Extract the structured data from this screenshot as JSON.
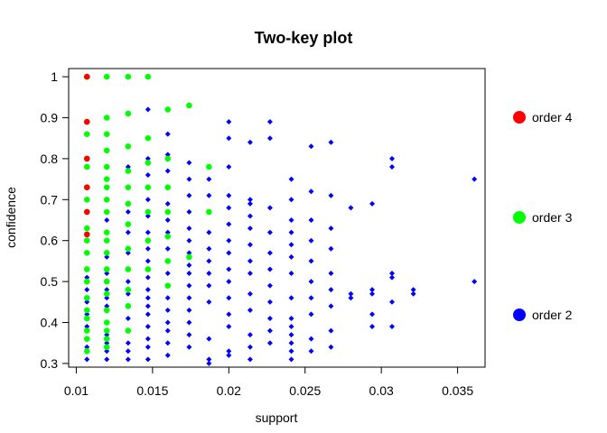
{
  "chart_data": {
    "type": "scatter",
    "title": "Two-key plot",
    "xlabel": "support",
    "ylabel": "confidence",
    "xlim": [
      0.0095,
      0.0368
    ],
    "ylim": [
      0.291,
      1.02
    ],
    "xticks": [
      0.01,
      0.015,
      0.02,
      0.025,
      0.03,
      0.035
    ],
    "xtick_labels": [
      "0.01",
      "0.015",
      "0.02",
      "0.025",
      "0.03",
      "0.035"
    ],
    "yticks": [
      0.3,
      0.4,
      0.5,
      0.6,
      0.7,
      0.8,
      0.9,
      1.0
    ],
    "ytick_labels": [
      "0.3",
      "0.4",
      "0.5",
      "0.6",
      "0.7",
      "0.8",
      "0.9",
      "1"
    ],
    "grid": false,
    "legend_position": "right",
    "legend": [
      {
        "label": "order 4",
        "color": "#ff0000"
      },
      {
        "label": "order 3",
        "color": "#00ff00"
      },
      {
        "label": "order 2",
        "color": "#0000ff"
      }
    ],
    "series": [
      {
        "name": "order 2",
        "color": "#0000ff",
        "points": [
          [
            0.0107,
            0.31
          ],
          [
            0.0107,
            0.34
          ],
          [
            0.0107,
            0.36
          ],
          [
            0.0107,
            0.39
          ],
          [
            0.0107,
            0.42
          ],
          [
            0.0107,
            0.45
          ],
          [
            0.0107,
            0.48
          ],
          [
            0.0107,
            0.51
          ],
          [
            0.012,
            0.31
          ],
          [
            0.012,
            0.33
          ],
          [
            0.012,
            0.35
          ],
          [
            0.012,
            0.37
          ],
          [
            0.012,
            0.4
          ],
          [
            0.012,
            0.44
          ],
          [
            0.012,
            0.46
          ],
          [
            0.012,
            0.48
          ],
          [
            0.012,
            0.52
          ],
          [
            0.012,
            0.56
          ],
          [
            0.012,
            0.6
          ],
          [
            0.012,
            0.65
          ],
          [
            0.012,
            0.7
          ],
          [
            0.0134,
            0.31
          ],
          [
            0.0134,
            0.33
          ],
          [
            0.0134,
            0.35
          ],
          [
            0.0134,
            0.38
          ],
          [
            0.0134,
            0.41
          ],
          [
            0.0134,
            0.44
          ],
          [
            0.0134,
            0.47
          ],
          [
            0.0134,
            0.5
          ],
          [
            0.0134,
            0.53
          ],
          [
            0.0134,
            0.57
          ],
          [
            0.0134,
            0.62
          ],
          [
            0.0134,
            0.67
          ],
          [
            0.0134,
            0.73
          ],
          [
            0.0134,
            0.78
          ],
          [
            0.0147,
            0.31
          ],
          [
            0.0147,
            0.34
          ],
          [
            0.0147,
            0.36
          ],
          [
            0.0147,
            0.39
          ],
          [
            0.0147,
            0.42
          ],
          [
            0.0147,
            0.44
          ],
          [
            0.0147,
            0.46
          ],
          [
            0.0147,
            0.48
          ],
          [
            0.0147,
            0.51
          ],
          [
            0.0147,
            0.55
          ],
          [
            0.0147,
            0.58
          ],
          [
            0.0147,
            0.62
          ],
          [
            0.0147,
            0.66
          ],
          [
            0.0147,
            0.7
          ],
          [
            0.0147,
            0.76
          ],
          [
            0.0147,
            0.8
          ],
          [
            0.0147,
            0.92
          ],
          [
            0.016,
            0.32
          ],
          [
            0.016,
            0.35
          ],
          [
            0.016,
            0.38
          ],
          [
            0.016,
            0.4
          ],
          [
            0.016,
            0.43
          ],
          [
            0.016,
            0.46
          ],
          [
            0.016,
            0.49
          ],
          [
            0.016,
            0.52
          ],
          [
            0.016,
            0.55
          ],
          [
            0.016,
            0.58
          ],
          [
            0.016,
            0.62
          ],
          [
            0.016,
            0.65
          ],
          [
            0.016,
            0.69
          ],
          [
            0.016,
            0.73
          ],
          [
            0.016,
            0.77
          ],
          [
            0.016,
            0.81
          ],
          [
            0.016,
            0.86
          ],
          [
            0.0174,
            0.34
          ],
          [
            0.0174,
            0.37
          ],
          [
            0.0174,
            0.4
          ],
          [
            0.0174,
            0.43
          ],
          [
            0.0174,
            0.46
          ],
          [
            0.0174,
            0.49
          ],
          [
            0.0174,
            0.52
          ],
          [
            0.0174,
            0.54
          ],
          [
            0.0174,
            0.57
          ],
          [
            0.0174,
            0.6
          ],
          [
            0.0174,
            0.63
          ],
          [
            0.0174,
            0.67
          ],
          [
            0.0174,
            0.71
          ],
          [
            0.0174,
            0.75
          ],
          [
            0.0174,
            0.79
          ],
          [
            0.0174,
            0.93
          ],
          [
            0.0187,
            0.3
          ],
          [
            0.0187,
            0.31
          ],
          [
            0.0187,
            0.36
          ],
          [
            0.0187,
            0.45
          ],
          [
            0.0187,
            0.49
          ],
          [
            0.0187,
            0.52
          ],
          [
            0.0187,
            0.55
          ],
          [
            0.0187,
            0.58
          ],
          [
            0.0187,
            0.62
          ],
          [
            0.0187,
            0.67
          ],
          [
            0.0187,
            0.71
          ],
          [
            0.0187,
            0.75
          ],
          [
            0.0187,
            0.78
          ],
          [
            0.02,
            0.32
          ],
          [
            0.02,
            0.33
          ],
          [
            0.02,
            0.39
          ],
          [
            0.02,
            0.42
          ],
          [
            0.02,
            0.46
          ],
          [
            0.02,
            0.5
          ],
          [
            0.02,
            0.53
          ],
          [
            0.02,
            0.57
          ],
          [
            0.02,
            0.6
          ],
          [
            0.02,
            0.64
          ],
          [
            0.02,
            0.68
          ],
          [
            0.02,
            0.71
          ],
          [
            0.02,
            0.78
          ],
          [
            0.02,
            0.85
          ],
          [
            0.02,
            0.89
          ],
          [
            0.0214,
            0.31
          ],
          [
            0.0214,
            0.34
          ],
          [
            0.0214,
            0.37
          ],
          [
            0.0214,
            0.43
          ],
          [
            0.0214,
            0.47
          ],
          [
            0.0214,
            0.52
          ],
          [
            0.0214,
            0.55
          ],
          [
            0.0214,
            0.59
          ],
          [
            0.0214,
            0.63
          ],
          [
            0.0214,
            0.66
          ],
          [
            0.0214,
            0.69
          ],
          [
            0.0214,
            0.7
          ],
          [
            0.0214,
            0.84
          ],
          [
            0.0227,
            0.35
          ],
          [
            0.0227,
            0.38
          ],
          [
            0.0227,
            0.41
          ],
          [
            0.0227,
            0.45
          ],
          [
            0.0227,
            0.49
          ],
          [
            0.0227,
            0.53
          ],
          [
            0.0227,
            0.57
          ],
          [
            0.0227,
            0.62
          ],
          [
            0.0227,
            0.68
          ],
          [
            0.0227,
            0.85
          ],
          [
            0.0227,
            0.89
          ],
          [
            0.0241,
            0.31
          ],
          [
            0.0241,
            0.33
          ],
          [
            0.0241,
            0.35
          ],
          [
            0.0241,
            0.37
          ],
          [
            0.0241,
            0.39
          ],
          [
            0.0241,
            0.41
          ],
          [
            0.0241,
            0.46
          ],
          [
            0.0241,
            0.52
          ],
          [
            0.0241,
            0.56
          ],
          [
            0.0241,
            0.59
          ],
          [
            0.0241,
            0.62
          ],
          [
            0.0241,
            0.65
          ],
          [
            0.0241,
            0.7
          ],
          [
            0.0241,
            0.75
          ],
          [
            0.0254,
            0.33
          ],
          [
            0.0254,
            0.36
          ],
          [
            0.0254,
            0.42
          ],
          [
            0.0254,
            0.46
          ],
          [
            0.0254,
            0.5
          ],
          [
            0.0254,
            0.55
          ],
          [
            0.0254,
            0.6
          ],
          [
            0.0254,
            0.65
          ],
          [
            0.0254,
            0.72
          ],
          [
            0.0254,
            0.83
          ],
          [
            0.0267,
            0.34
          ],
          [
            0.0267,
            0.38
          ],
          [
            0.0267,
            0.44
          ],
          [
            0.0267,
            0.48
          ],
          [
            0.0267,
            0.52
          ],
          [
            0.0267,
            0.58
          ],
          [
            0.0267,
            0.63
          ],
          [
            0.0267,
            0.71
          ],
          [
            0.0267,
            0.84
          ],
          [
            0.028,
            0.46
          ],
          [
            0.028,
            0.47
          ],
          [
            0.028,
            0.68
          ],
          [
            0.0294,
            0.39
          ],
          [
            0.0294,
            0.42
          ],
          [
            0.0294,
            0.47
          ],
          [
            0.0294,
            0.48
          ],
          [
            0.0294,
            0.69
          ],
          [
            0.0307,
            0.39
          ],
          [
            0.0307,
            0.45
          ],
          [
            0.0307,
            0.51
          ],
          [
            0.0307,
            0.52
          ],
          [
            0.0307,
            0.78
          ],
          [
            0.0307,
            0.8
          ],
          [
            0.0321,
            0.47
          ],
          [
            0.0321,
            0.48
          ],
          [
            0.0361,
            0.5
          ],
          [
            0.0361,
            0.75
          ]
        ]
      },
      {
        "name": "order 3",
        "color": "#00ff00",
        "points": [
          [
            0.0107,
            0.33
          ],
          [
            0.0107,
            0.36
          ],
          [
            0.0107,
            0.38
          ],
          [
            0.0107,
            0.41
          ],
          [
            0.0107,
            0.43
          ],
          [
            0.0107,
            0.46
          ],
          [
            0.0107,
            0.5
          ],
          [
            0.0107,
            0.53
          ],
          [
            0.0107,
            0.57
          ],
          [
            0.0107,
            0.6
          ],
          [
            0.0107,
            0.63
          ],
          [
            0.0107,
            0.67
          ],
          [
            0.0107,
            0.7
          ],
          [
            0.0107,
            0.73
          ],
          [
            0.0107,
            0.78
          ],
          [
            0.0107,
            0.8
          ],
          [
            0.0107,
            0.86
          ],
          [
            0.0107,
            0.89
          ],
          [
            0.0107,
            1.0
          ],
          [
            0.012,
            0.34
          ],
          [
            0.012,
            0.36
          ],
          [
            0.012,
            0.38
          ],
          [
            0.012,
            0.4
          ],
          [
            0.012,
            0.43
          ],
          [
            0.012,
            0.47
          ],
          [
            0.012,
            0.5
          ],
          [
            0.012,
            0.53
          ],
          [
            0.012,
            0.57
          ],
          [
            0.012,
            0.6
          ],
          [
            0.012,
            0.62
          ],
          [
            0.012,
            0.67
          ],
          [
            0.012,
            0.7
          ],
          [
            0.012,
            0.73
          ],
          [
            0.012,
            0.75
          ],
          [
            0.012,
            0.78
          ],
          [
            0.012,
            0.82
          ],
          [
            0.012,
            0.86
          ],
          [
            0.012,
            0.9
          ],
          [
            0.012,
            1.0
          ],
          [
            0.0134,
            0.38
          ],
          [
            0.0134,
            0.44
          ],
          [
            0.0134,
            0.48
          ],
          [
            0.0134,
            0.53
          ],
          [
            0.0134,
            0.58
          ],
          [
            0.0134,
            0.64
          ],
          [
            0.0134,
            0.69
          ],
          [
            0.0134,
            0.73
          ],
          [
            0.0134,
            0.77
          ],
          [
            0.0134,
            0.83
          ],
          [
            0.0134,
            0.91
          ],
          [
            0.0134,
            1.0
          ],
          [
            0.0147,
            0.53
          ],
          [
            0.0147,
            0.6
          ],
          [
            0.0147,
            0.67
          ],
          [
            0.0147,
            0.73
          ],
          [
            0.0147,
            0.79
          ],
          [
            0.0147,
            0.85
          ],
          [
            0.0147,
            1.0
          ],
          [
            0.016,
            0.49
          ],
          [
            0.016,
            0.55
          ],
          [
            0.016,
            0.61
          ],
          [
            0.016,
            0.67
          ],
          [
            0.016,
            0.73
          ],
          [
            0.016,
            0.8
          ],
          [
            0.016,
            0.92
          ],
          [
            0.0174,
            0.56
          ],
          [
            0.0174,
            0.93
          ],
          [
            0.0187,
            0.67
          ],
          [
            0.0187,
            0.78
          ]
        ]
      },
      {
        "name": "order 4",
        "color": "#ff0000",
        "points": [
          [
            0.0107,
            1.0
          ],
          [
            0.0107,
            0.89
          ],
          [
            0.0107,
            0.8
          ],
          [
            0.0107,
            0.73
          ],
          [
            0.0107,
            0.67
          ],
          [
            0.0107,
            0.615
          ]
        ]
      }
    ]
  }
}
